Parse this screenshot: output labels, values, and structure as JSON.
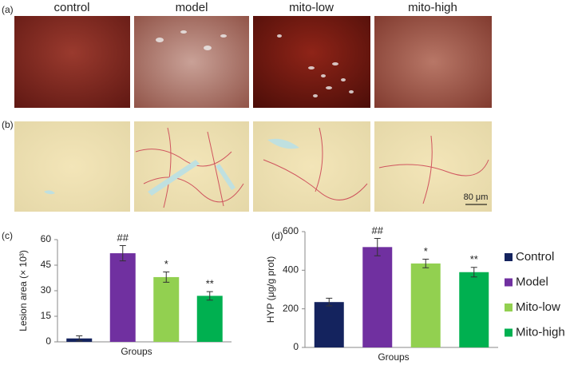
{
  "panel_labels": [
    "(a)",
    "(b)",
    "(c)",
    "(d)"
  ],
  "photo_columns": [
    "control",
    "model",
    "mito-low",
    "mito-high"
  ],
  "scale_bar": "80 μm",
  "chart_data": [
    {
      "type": "bar",
      "ylabel": "Lesion area (× 10³)",
      "xlabel": "Groups",
      "values": [
        2,
        52,
        38,
        27
      ],
      "errors": [
        1.5,
        4.5,
        3,
        2.5
      ],
      "significance": [
        null,
        "##",
        "*",
        "**"
      ],
      "colors": [
        "#14235e",
        "#7030a0",
        "#92d050",
        "#00b050"
      ],
      "ylim": [
        0,
        60
      ],
      "yticks": [
        0,
        15,
        30,
        45,
        60
      ]
    },
    {
      "type": "bar",
      "ylabel": "HYP (μg/g prot)",
      "xlabel": "Groups",
      "categories": [
        "Control",
        "Model",
        "Mito-low",
        "Mito-high"
      ],
      "values": [
        235,
        520,
        435,
        390
      ],
      "errors": [
        20,
        45,
        22,
        25
      ],
      "significance": [
        null,
        "##",
        "*",
        "**"
      ],
      "colors": [
        "#14235e",
        "#7030a0",
        "#92d050",
        "#00b050"
      ],
      "ylim": [
        0,
        600
      ],
      "yticks": [
        0,
        200,
        400,
        600
      ],
      "legend": "right"
    }
  ]
}
